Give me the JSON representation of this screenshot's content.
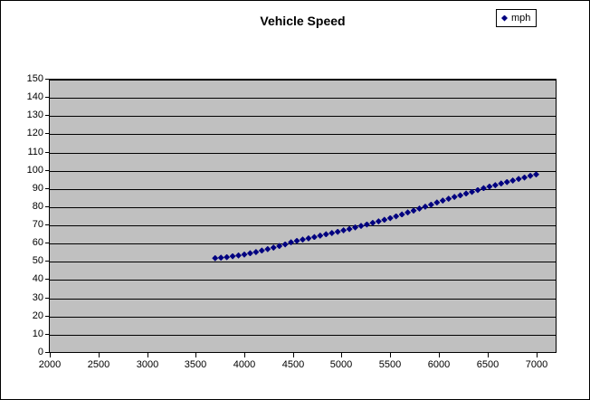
{
  "chart_data": {
    "type": "scatter",
    "title": "Vehicle Speed",
    "xlabel": "",
    "ylabel": "",
    "xlim": [
      2000,
      7200
    ],
    "ylim": [
      0,
      150
    ],
    "x_ticks": [
      2000,
      2500,
      3000,
      3500,
      4000,
      4500,
      5000,
      5500,
      6000,
      6500,
      7000
    ],
    "y_ticks": [
      0,
      10,
      20,
      30,
      40,
      50,
      60,
      70,
      80,
      90,
      100,
      110,
      120,
      130,
      140,
      150
    ],
    "grid": "horizontal",
    "legend_position": "top-right",
    "colors": {
      "marker": "#000080",
      "plot_background": "#c0c0c0",
      "gridline": "#000000",
      "text": "#000000",
      "chart_background": "#ffffff"
    },
    "series": [
      {
        "name": "mph",
        "marker": "diamond",
        "color": "#000080",
        "x": [
          3700,
          3760,
          3820,
          3880,
          3940,
          4000,
          4060,
          4120,
          4180,
          4240,
          4300,
          4360,
          4420,
          4480,
          4540,
          4600,
          4660,
          4720,
          4780,
          4840,
          4900,
          4960,
          5020,
          5080,
          5140,
          5200,
          5260,
          5320,
          5380,
          5440,
          5500,
          5560,
          5620,
          5680,
          5740,
          5800,
          5860,
          5920,
          5980,
          6040,
          6100,
          6160,
          6220,
          6280,
          6340,
          6400,
          6460,
          6520,
          6580,
          6640,
          6700,
          6760,
          6820,
          6880,
          6940,
          7000
        ],
        "y": [
          52.0,
          52.3,
          52.6,
          53.1,
          53.5,
          54.0,
          54.7,
          55.4,
          56.2,
          57.0,
          57.8,
          58.7,
          59.6,
          60.7,
          61.5,
          62.2,
          62.9,
          63.6,
          64.4,
          65.1,
          65.8,
          66.5,
          67.3,
          68.0,
          68.9,
          69.7,
          70.5,
          71.4,
          72.2,
          73.1,
          74.0,
          75.0,
          76.0,
          77.1,
          78.1,
          79.2,
          80.3,
          81.4,
          82.6,
          83.6,
          84.6,
          85.6,
          86.5,
          87.5,
          88.4,
          89.4,
          90.4,
          91.3,
          92.1,
          93.0,
          93.8,
          94.6,
          95.5,
          96.3,
          97.2,
          98.0
        ]
      }
    ]
  }
}
